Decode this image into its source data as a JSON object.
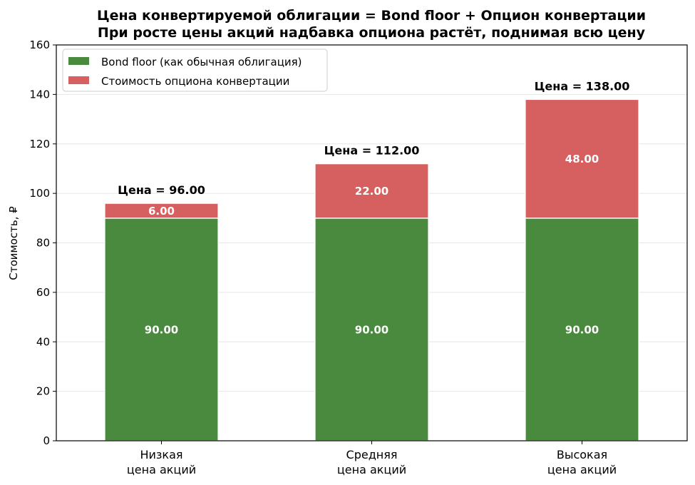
{
  "chart_data": {
    "type": "bar",
    "stacked": true,
    "title_lines": [
      "Цена конвертируемой облигации = Bond floor + Опцион конвертации",
      "При росте цены акций надбавка опциона растёт, поднимая всю цену"
    ],
    "ylabel": "Стоимость, ₽",
    "xlabel": "",
    "ylim": [
      0,
      160
    ],
    "yticks": [
      0,
      20,
      40,
      60,
      80,
      100,
      120,
      140,
      160
    ],
    "grid": "horizontal",
    "legend_position": "top-left",
    "categories": [
      [
        "Низкая",
        "цена акций"
      ],
      [
        "Средняя",
        "цена акций"
      ],
      [
        "Высокая",
        "цена акций"
      ]
    ],
    "series": [
      {
        "name": "Bond floor (как обычная облигация)",
        "color": "#4a8a3f",
        "values": [
          90,
          90,
          90
        ],
        "labels": [
          "90.00",
          "90.00",
          "90.00"
        ]
      },
      {
        "name": "Стоимость опциона конвертации",
        "color": "#d66060",
        "values": [
          6,
          22,
          48
        ],
        "labels": [
          "6.00",
          "22.00",
          "48.00"
        ]
      }
    ],
    "totals": [
      96,
      112,
      138
    ],
    "total_labels": [
      "Цена = 96.00",
      "Цена = 112.00",
      "Цена = 138.00"
    ]
  }
}
